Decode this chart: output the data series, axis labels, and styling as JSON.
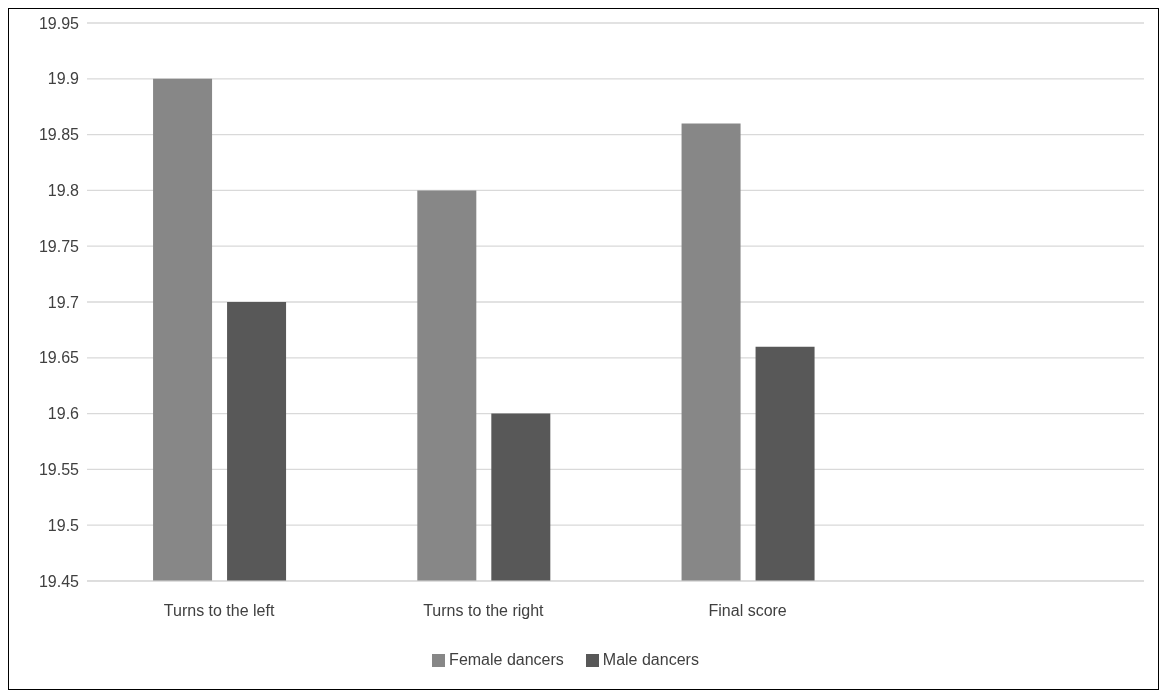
{
  "chart_data": {
    "type": "bar",
    "categories": [
      "Turns to the left",
      "Turns to the right",
      "Final score",
      null
    ],
    "series": [
      {
        "name": "Female dancers",
        "color": "#878787",
        "values": [
          19.9,
          19.8,
          19.86,
          null
        ]
      },
      {
        "name": "Male dancers",
        "color": "#585858",
        "values": [
          19.7,
          19.6,
          19.66,
          null
        ]
      }
    ],
    "ylim": [
      19.45,
      19.95
    ],
    "yticks": [
      19.45,
      19.5,
      19.55,
      19.6,
      19.65,
      19.7,
      19.75,
      19.8,
      19.85,
      19.9,
      19.95
    ],
    "grid": "y",
    "legend": "bottom"
  }
}
